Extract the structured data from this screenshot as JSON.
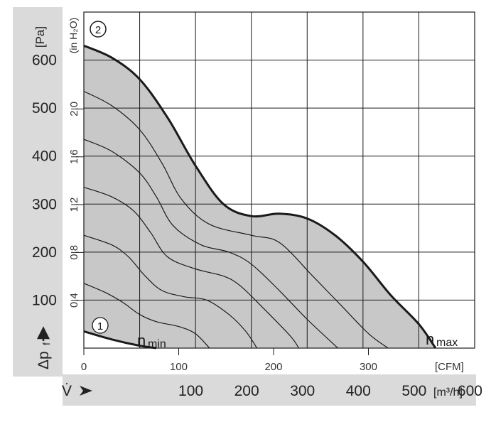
{
  "chart_data": {
    "type": "line",
    "title": "",
    "y_axis": {
      "label_symbol": "Δp",
      "label_subscript": "f",
      "unit": "[Pa]",
      "range": [
        0,
        700
      ],
      "ticks": [
        100,
        200,
        300,
        400,
        500,
        600
      ]
    },
    "y_axis_secondary": {
      "unit": "(in H₂O)",
      "ticks": [
        "0,4",
        "0,8",
        "1,2",
        "1,6",
        "2,0"
      ],
      "tick_values_pa": [
        99.6,
        199.3,
        298.9,
        398.5,
        498.2
      ]
    },
    "x_axis": {
      "label_symbol": "V̇",
      "unit": "[m³/h]",
      "ticks": [
        100,
        200,
        300,
        400,
        500,
        600
      ],
      "range_m3h": [
        0,
        700
      ]
    },
    "x_axis_secondary": {
      "unit": "[CFM]",
      "ticks": [
        0,
        100,
        200,
        300
      ],
      "tick_values_m3h": [
        0,
        169.9,
        339.8,
        509.7
      ]
    },
    "grid": true,
    "curves": [
      {
        "id": "max",
        "label": "2",
        "name": "nmax",
        "bold": true,
        "points": [
          [
            0,
            630
          ],
          [
            50,
            605
          ],
          [
            100,
            560
          ],
          [
            150,
            480
          ],
          [
            200,
            380
          ],
          [
            250,
            300
          ],
          [
            300,
            275
          ],
          [
            350,
            280
          ],
          [
            400,
            270
          ],
          [
            450,
            235
          ],
          [
            500,
            180
          ],
          [
            550,
            110
          ],
          [
            600,
            50
          ],
          [
            630,
            0
          ]
        ]
      },
      {
        "id": "c6",
        "points": [
          [
            0,
            535
          ],
          [
            50,
            505
          ],
          [
            100,
            455
          ],
          [
            140,
            385
          ],
          [
            175,
            310
          ],
          [
            225,
            258
          ],
          [
            300,
            235
          ],
          [
            350,
            220
          ],
          [
            410,
            150
          ],
          [
            460,
            90
          ],
          [
            510,
            30
          ],
          [
            545,
            0
          ]
        ]
      },
      {
        "id": "c5",
        "points": [
          [
            0,
            435
          ],
          [
            50,
            410
          ],
          [
            100,
            365
          ],
          [
            130,
            315
          ],
          [
            160,
            255
          ],
          [
            210,
            215
          ],
          [
            260,
            200
          ],
          [
            300,
            175
          ],
          [
            350,
            120
          ],
          [
            400,
            60
          ],
          [
            455,
            0
          ]
        ]
      },
      {
        "id": "c4",
        "points": [
          [
            0,
            335
          ],
          [
            50,
            315
          ],
          [
            90,
            285
          ],
          [
            120,
            240
          ],
          [
            150,
            190
          ],
          [
            200,
            165
          ],
          [
            250,
            150
          ],
          [
            280,
            130
          ],
          [
            320,
            85
          ],
          [
            370,
            25
          ],
          [
            385,
            0
          ]
        ]
      },
      {
        "id": "c3",
        "points": [
          [
            0,
            235
          ],
          [
            50,
            215
          ],
          [
            80,
            190
          ],
          [
            110,
            150
          ],
          [
            140,
            120
          ],
          [
            180,
            107
          ],
          [
            220,
            100
          ],
          [
            260,
            70
          ],
          [
            290,
            35
          ],
          [
            310,
            0
          ]
        ]
      },
      {
        "id": "c2",
        "points": [
          [
            0,
            135
          ],
          [
            40,
            115
          ],
          [
            70,
            95
          ],
          [
            100,
            70
          ],
          [
            130,
            55
          ],
          [
            170,
            45
          ],
          [
            200,
            30
          ],
          [
            225,
            0
          ]
        ]
      },
      {
        "id": "min",
        "label": "1",
        "name": "nmin",
        "bold": true,
        "points": [
          [
            0,
            35
          ],
          [
            50,
            18
          ],
          [
            100,
            5
          ],
          [
            130,
            0
          ]
        ]
      }
    ],
    "operating_range_fill": "#c8c8c8",
    "annotations": [
      {
        "text": "n",
        "sub": "min"
      },
      {
        "text": "n",
        "sub": "max"
      }
    ]
  },
  "colors": {
    "panel": "#dadada",
    "plot_bg": "#ffffff",
    "grid": "#1a1a1a",
    "fill": "#c8c8c8",
    "curve": "#1a1a1a"
  }
}
